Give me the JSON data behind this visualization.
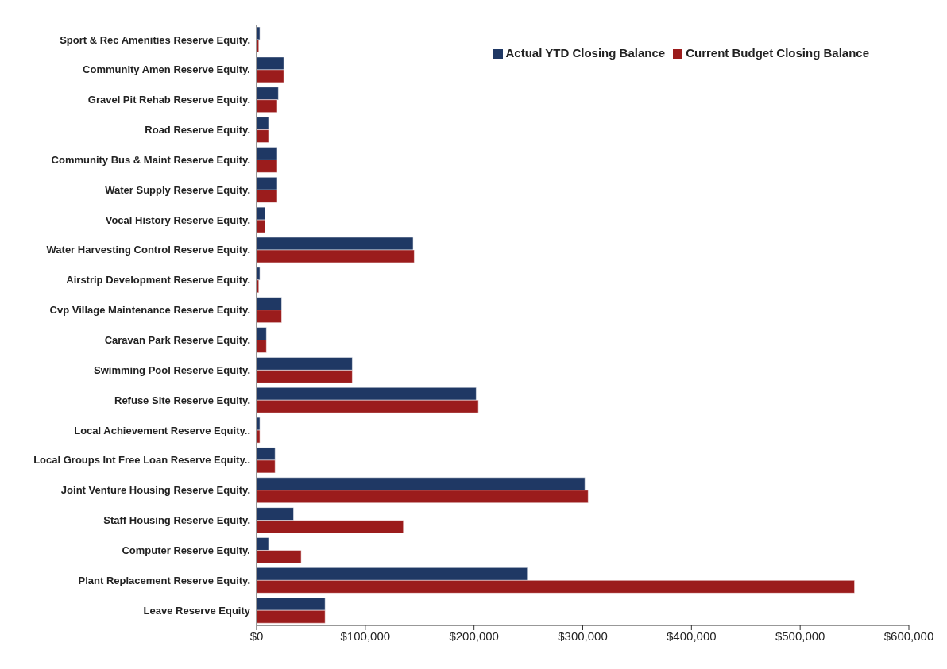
{
  "chart_data": {
    "type": "bar",
    "orientation": "horizontal",
    "categories": [
      "Sport & Rec Amenities Reserve Equity.",
      "Community Amen Reserve Equity.",
      "Gravel Pit Rehab Reserve Equity.",
      "Road Reserve Equity.",
      "Community Bus & Maint Reserve Equity.",
      "Water Supply Reserve Equity.",
      "Vocal History Reserve Equity.",
      "Water Harvesting Control Reserve Equity.",
      "Airstrip Development Reserve Equity.",
      "Cvp Village Maintenance Reserve Equity.",
      "Caravan Park Reserve Equity.",
      "Swimming Pool Reserve Equity.",
      "Refuse Site Reserve Equity.",
      "Local Achievement Reserve Equity..",
      "Local Groups Int Free Loan Reserve Equity..",
      "Joint Venture Housing Reserve Equity.",
      "Staff Housing Reserve Equity.",
      "Computer Reserve Equity.",
      "Plant Replacement  Reserve Equity.",
      "Leave Reserve Equity"
    ],
    "series": [
      {
        "name": "Actual YTD Closing Balance",
        "color": "#1f3864",
        "values": [
          3000,
          25000,
          20000,
          11000,
          19000,
          19000,
          8000,
          144000,
          3000,
          23000,
          9000,
          88000,
          202000,
          3000,
          17000,
          302000,
          34000,
          11000,
          249000,
          63000
        ]
      },
      {
        "name": "Current Budget Closing Balance",
        "color": "#9b1c1c",
        "values": [
          2000,
          25000,
          19000,
          11000,
          19000,
          19000,
          8000,
          145000,
          2000,
          23000,
          9000,
          88000,
          204000,
          3000,
          17000,
          305000,
          135000,
          41000,
          550000,
          63000
        ]
      }
    ],
    "xlim": [
      0,
      600000
    ],
    "xticks": [
      {
        "value": 0,
        "label": "$0"
      },
      {
        "value": 100000,
        "label": "$100,000"
      },
      {
        "value": 200000,
        "label": "$200,000"
      },
      {
        "value": 300000,
        "label": "$300,000"
      },
      {
        "value": 400000,
        "label": "$400,000"
      },
      {
        "value": 500000,
        "label": "$500,000"
      },
      {
        "value": 600000,
        "label": "$600,000"
      }
    ],
    "grid": false,
    "legend": "top right"
  }
}
